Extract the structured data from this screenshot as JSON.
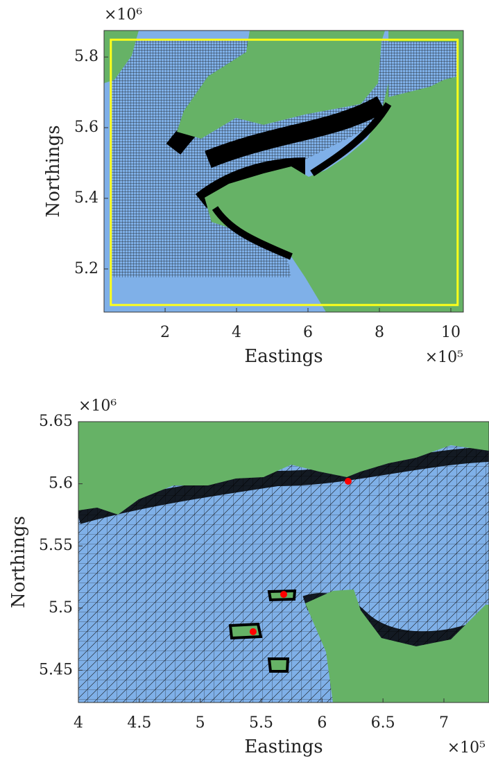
{
  "chart_data": [
    {
      "type": "map",
      "x_label": "Eastings",
      "y_label": "Northings",
      "x_multiplier": "×10⁵",
      "y_multiplier": "×10⁶",
      "xlim": [
        0.29,
        10.35
      ],
      "ylim": [
        5.078,
        5.875
      ],
      "xticks": [
        2,
        4,
        6,
        8,
        10
      ],
      "yticks": [
        5.2,
        5.4,
        5.6,
        5.8
      ],
      "box": {
        "xlim": [
          0.48,
          10.19
        ],
        "ylim": [
          5.098,
          5.849
        ],
        "color": "#ffff1a"
      }
    },
    {
      "type": "map",
      "x_label": "Eastings",
      "y_label": "Northings",
      "x_multiplier": "×10⁵",
      "y_multiplier": "×10⁶",
      "xlim": [
        4,
        7.37
      ],
      "ylim": [
        5.424,
        5.65
      ],
      "xticks": [
        4,
        4.5,
        5,
        5.5,
        6,
        6.5,
        7
      ],
      "yticks": [
        5.45,
        5.5,
        5.55,
        5.6,
        5.65
      ],
      "points": {
        "x": [
          6.214,
          5.685,
          5.434
        ],
        "y": [
          5.602,
          5.511,
          5.481
        ],
        "color": "#ff0000"
      }
    }
  ]
}
